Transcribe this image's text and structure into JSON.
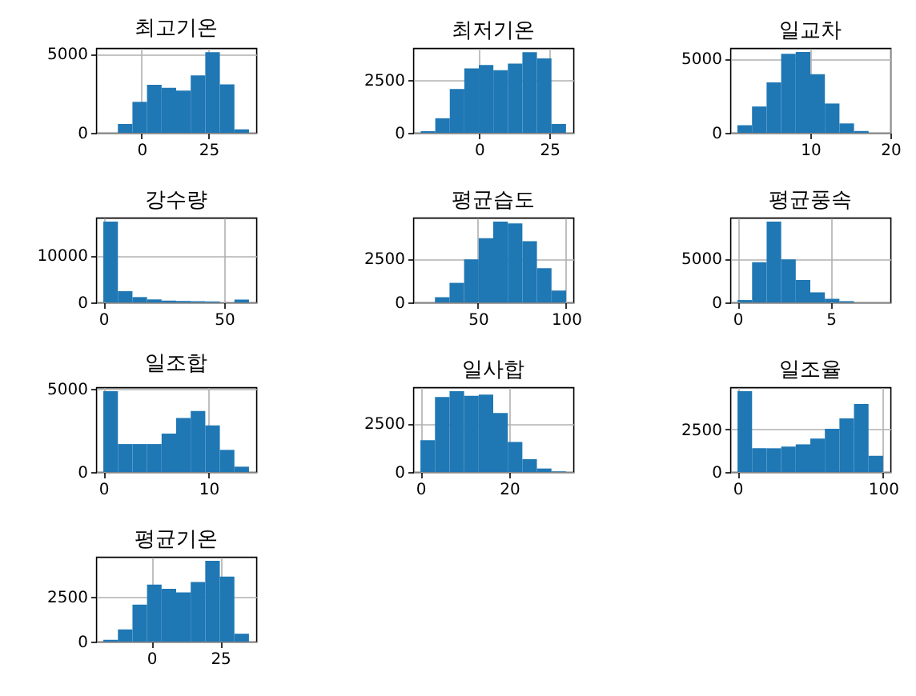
{
  "chart_data": [
    {
      "type": "histogram",
      "title": "최고기온",
      "bins": [
        -14.3,
        -8.86,
        -3.42,
        2.02,
        7.46,
        12.9,
        18.34,
        23.78,
        29.22,
        34.66,
        40.1
      ],
      "values": [
        null,
        560,
        1960,
        3040,
        2850,
        2670,
        3630,
        5110,
        3070,
        220
      ],
      "color": "#1f77b4",
      "xlim": [
        -17,
        42.8
      ],
      "ylim": [
        0,
        5370
      ],
      "xticks": [
        0,
        25
      ],
      "yticks": [
        0,
        5000
      ],
      "grid": true
    },
    {
      "type": "histogram",
      "title": "최저기온",
      "bins": [
        -20.8,
        -15.63,
        -10.46,
        -5.29,
        -0.12,
        5.05,
        10.22,
        15.39,
        20.56,
        25.73,
        30.9
      ],
      "values": [
        80,
        690,
        2080,
        3060,
        3220,
        2970,
        3280,
        3830,
        3530,
        420
      ],
      "color": "#1f77b4",
      "xlim": [
        -23.5,
        33.5
      ],
      "ylim": [
        0,
        4025
      ],
      "xticks": [
        0,
        25
      ],
      "yticks": [
        0,
        2500
      ],
      "grid": true
    },
    {
      "type": "histogram",
      "title": "일교차",
      "bins": [
        0.9,
        2.72,
        4.54,
        6.36,
        8.18,
        10.0,
        11.82,
        13.64,
        15.46,
        17.28,
        19.1
      ],
      "values": [
        510,
        1770,
        3390,
        5320,
        5430,
        3940,
        1970,
        630,
        120,
        null
      ],
      "color": "#1f77b4",
      "xlim": [
        0,
        20
      ],
      "ylim": [
        0,
        5705
      ],
      "xticks": [
        10,
        20
      ],
      "yticks": [
        0,
        5000
      ],
      "grid": true
    },
    {
      "type": "histogram",
      "title": "강수량",
      "bins": [
        0,
        6.03,
        12.06,
        18.09,
        24.12,
        30.15,
        36.18,
        42.21,
        48.24,
        54.27,
        60.3
      ],
      "values": [
        17130,
        2380,
        1130,
        630,
        380,
        300,
        250,
        200,
        null,
        600
      ],
      "color": "#1f77b4",
      "xlim": [
        -3,
        63.3
      ],
      "ylim": [
        0,
        17980
      ],
      "xticks": [
        0,
        50
      ],
      "yticks": [
        0,
        10000
      ],
      "grid": true
    },
    {
      "type": "histogram",
      "title": "평균습도",
      "bins": [
        17.3,
        25.57,
        33.84,
        42.11,
        50.38,
        58.65,
        66.92,
        75.19,
        83.46,
        91.73,
        100
      ],
      "values": [
        null,
        300,
        1120,
        2470,
        3680,
        4630,
        4530,
        3510,
        1960,
        680
      ],
      "color": "#1f77b4",
      "xlim": [
        13.2,
        104.1
      ],
      "ylim": [
        0,
        4860
      ],
      "xticks": [
        50,
        100
      ],
      "yticks": [
        0,
        2500
      ],
      "grid": true
    },
    {
      "type": "histogram",
      "title": "평균풍속",
      "bins": [
        0,
        0.78,
        1.56,
        2.34,
        3.12,
        3.9,
        4.68,
        5.46,
        6.24,
        7.02,
        7.8
      ],
      "values": [
        270,
        4600,
        9260,
        4930,
        2570,
        1150,
        410,
        140,
        null,
        null
      ],
      "color": "#1f77b4",
      "xlim": [
        -0.39,
        8.19
      ],
      "ylim": [
        0,
        9720
      ],
      "xticks": [
        0,
        5
      ],
      "yticks": [
        0,
        5000
      ],
      "grid": true
    },
    {
      "type": "histogram",
      "title": "일조합",
      "bins": [
        0,
        1.385,
        2.77,
        4.155,
        5.54,
        6.925,
        8.31,
        9.695,
        11.08,
        12.465,
        13.85
      ],
      "values": [
        4860,
        1680,
        1680,
        1680,
        2310,
        3250,
        3670,
        2800,
        1330,
        320
      ],
      "color": "#1f77b4",
      "xlim": [
        -0.69,
        14.54
      ],
      "ylim": [
        0,
        5100
      ],
      "xticks": [
        0,
        10
      ],
      "yticks": [
        0,
        5000
      ],
      "grid": true
    },
    {
      "type": "histogram",
      "title": "일사합",
      "bins": [
        0,
        3.28,
        6.56,
        9.84,
        13.12,
        16.4,
        19.68,
        22.96,
        26.24,
        29.52,
        32.8
      ],
      "values": [
        1640,
        3870,
        4170,
        3930,
        3990,
        3040,
        1550,
        660,
        180,
        30
      ],
      "color": "#1f77b4",
      "xlim": [
        -1.64,
        34.44
      ],
      "ylim": [
        0,
        4375
      ],
      "xticks": [
        0,
        20
      ],
      "yticks": [
        0,
        2500
      ],
      "grid": true
    },
    {
      "type": "histogram",
      "title": "일조율",
      "bins": [
        0,
        10,
        20,
        30,
        40,
        50,
        60,
        70,
        80,
        90,
        100
      ],
      "values": [
        4730,
        1390,
        1390,
        1490,
        1620,
        1960,
        2530,
        3140,
        3990,
        950
      ],
      "color": "#1f77b4",
      "xlim": [
        -5,
        105
      ],
      "ylim": [
        0,
        4970
      ],
      "xticks": [
        0,
        100
      ],
      "yticks": [
        0,
        2500
      ],
      "grid": true
    },
    {
      "type": "histogram",
      "title": "평균기온",
      "bins": [
        -17.4,
        -12.12,
        -6.84,
        -1.56,
        3.72,
        9.0,
        14.28,
        19.56,
        24.84,
        30.12,
        35.4
      ],
      "values": [
        100,
        680,
        2060,
        3180,
        2940,
        2740,
        3320,
        4500,
        3620,
        440
      ],
      "color": "#1f77b4",
      "xlim": [
        -20.04,
        38.04
      ],
      "ylim": [
        0,
        4725
      ],
      "xticks": [
        0,
        25
      ],
      "yticks": [
        0,
        2500
      ],
      "grid": true
    }
  ]
}
